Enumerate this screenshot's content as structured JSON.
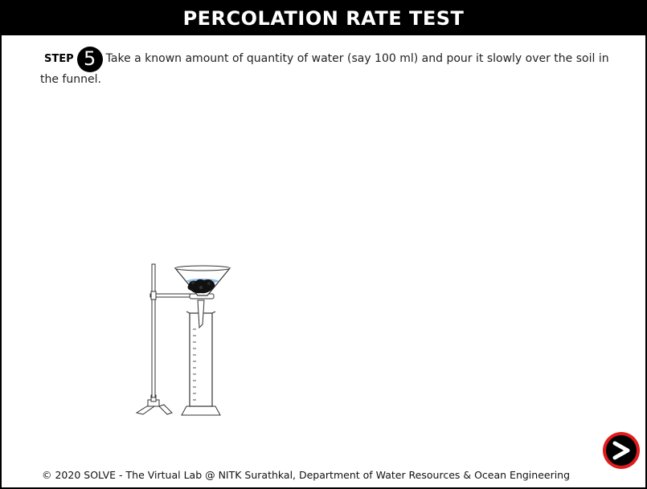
{
  "header": {
    "title": "PERCOLATION RATE TEST"
  },
  "step": {
    "label": "STEP",
    "number": "5",
    "text": "Take a known amount of quantity of water (say 100 ml) and pour it slowly over the soil in the funnel."
  },
  "apparatus": {
    "icon": "percolation-apparatus-icon"
  },
  "navigation": {
    "next_icon": "next-arrow-icon",
    "accent_color": "#e11b1b"
  },
  "footer": {
    "copyright": "© 2020 SOLVE - The Virtual Lab @ NITK Surathkal, Department of Water Resources & Ocean Engineering"
  }
}
